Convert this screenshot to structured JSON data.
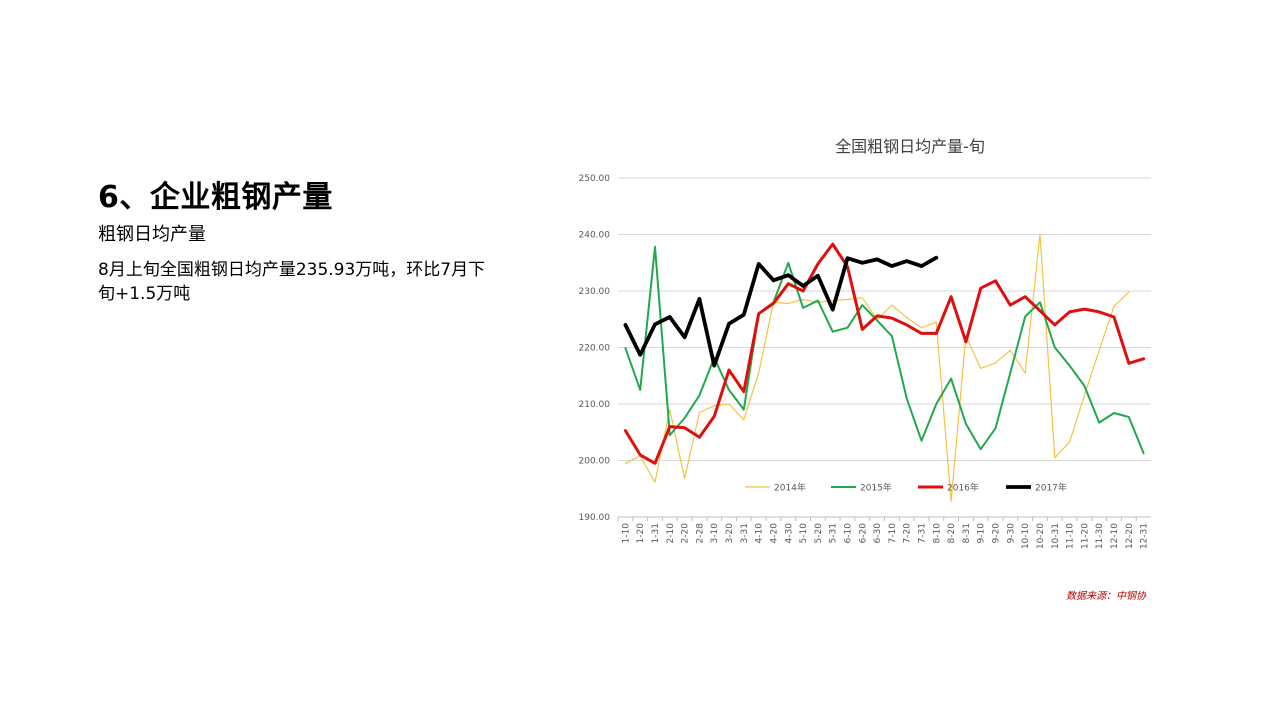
{
  "slide": {
    "title": "6、企业粗钢产量",
    "subtitle": "粗钢日均产量",
    "body": "8月上旬全国粗钢日均产量235.93万吨，环比7月下旬+1.5万吨",
    "source": "数据来源：中钢协"
  },
  "chart_data": {
    "type": "line",
    "title": "全国粗钢日均产量-旬",
    "xlabel": "",
    "ylabel": "",
    "ylim": [
      190,
      250
    ],
    "yticks": [
      "190.00",
      "200.00",
      "210.00",
      "220.00",
      "230.00",
      "240.00",
      "250.00"
    ],
    "grid": true,
    "legend_position": "bottom-inside",
    "categories": [
      "1-10",
      "1-20",
      "1-31",
      "2-10",
      "2-20",
      "2-28",
      "3-10",
      "3-20",
      "3-31",
      "4-10",
      "4-20",
      "4-30",
      "5-10",
      "5-20",
      "5-31",
      "6-10",
      "6-20",
      "6-30",
      "7-10",
      "7-20",
      "7-31",
      "8-10",
      "8-20",
      "8-31",
      "9-10",
      "9-20",
      "9-30",
      "10-10",
      "10-20",
      "10-31",
      "11-10",
      "11-20",
      "11-30",
      "12-10",
      "12-20",
      "12-31"
    ],
    "series": [
      {
        "name": "2014年",
        "color": "#f5c242",
        "width": 1.2,
        "values": [
          199.5,
          200.8,
          196.2,
          209.0,
          196.8,
          208.5,
          209.7,
          210.0,
          207.2,
          215.5,
          228.0,
          227.8,
          228.5,
          228.0,
          228.3,
          228.5,
          228.8,
          225.0,
          227.5,
          225.3,
          223.5,
          224.5,
          192.8,
          222.0,
          216.3,
          217.3,
          219.5,
          215.5,
          240.0,
          200.5,
          203.3,
          211.5,
          219.5,
          227.3,
          229.8,
          null
        ]
      },
      {
        "name": "2015年",
        "color": "#22a84c",
        "width": 2.0,
        "values": [
          219.9,
          212.5,
          237.8,
          204.5,
          207.5,
          211.5,
          218.2,
          212.5,
          209.0,
          226.0,
          228.0,
          235.0,
          227.0,
          228.3,
          222.8,
          223.5,
          227.5,
          224.8,
          222.0,
          211.0,
          203.5,
          210.0,
          214.5,
          206.5,
          202.0,
          205.7,
          215.5,
          225.5,
          228.0,
          220.0,
          216.8,
          213.2,
          206.7,
          208.4,
          207.7,
          201.3
        ]
      },
      {
        "name": "2016年",
        "color": "#e00f0f",
        "width": 3.0,
        "values": [
          205.3,
          201.0,
          199.5,
          206.0,
          205.8,
          204.1,
          207.8,
          216.0,
          212.2,
          226.0,
          227.8,
          231.3,
          230.0,
          234.8,
          238.3,
          234.3,
          223.2,
          225.6,
          225.2,
          224.0,
          222.5,
          222.5,
          229.0,
          221.0,
          230.5,
          231.8,
          227.5,
          229.0,
          226.5,
          224.0,
          226.3,
          226.8,
          226.3,
          225.4,
          217.2,
          218.0
        ]
      },
      {
        "name": "2017年",
        "color": "#000000",
        "width": 3.8,
        "values": [
          224.0,
          218.7,
          224.1,
          225.4,
          221.8,
          228.6,
          216.8,
          224.2,
          225.8,
          234.8,
          231.9,
          232.8,
          230.9,
          232.7,
          226.7,
          235.8,
          235.0,
          235.6,
          234.4,
          235.3,
          234.4,
          235.9,
          null,
          null,
          null,
          null,
          null,
          null,
          null,
          null,
          null,
          null,
          null,
          null,
          null,
          null
        ]
      }
    ]
  }
}
